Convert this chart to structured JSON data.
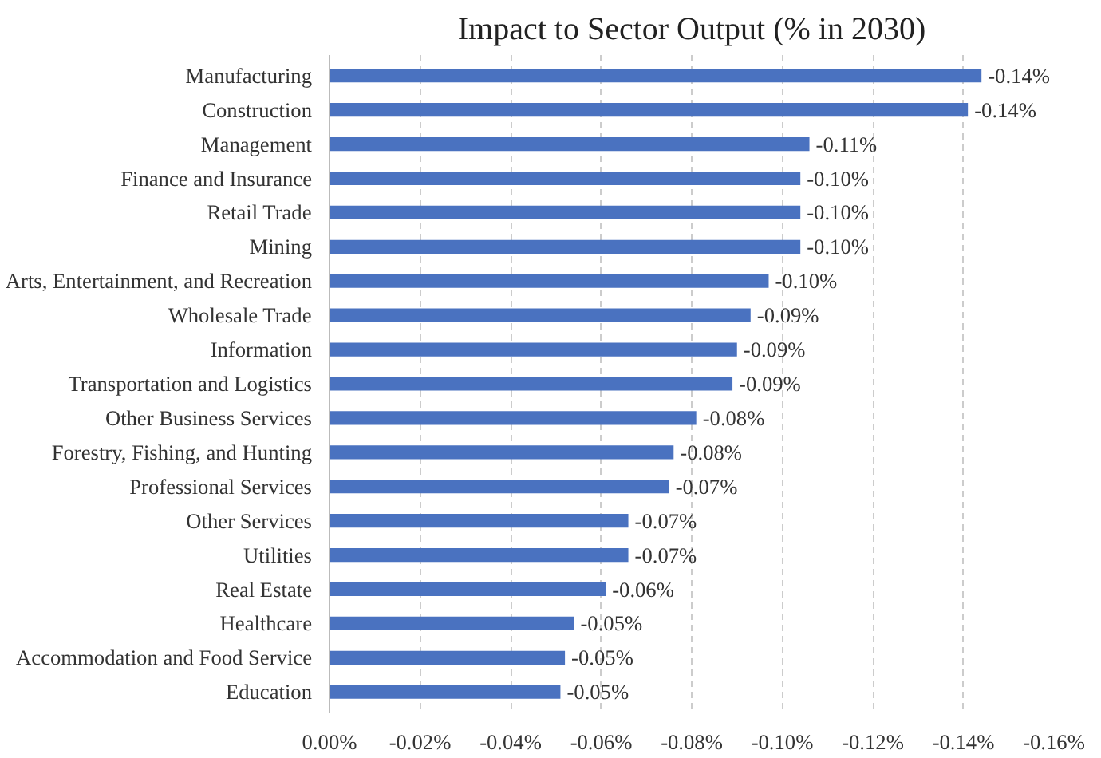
{
  "chart_data": {
    "type": "bar",
    "orientation": "horizontal",
    "title": "Impact to Sector Output (% in 2030)",
    "categories": [
      "Manufacturing",
      "Construction",
      "Management",
      "Finance and Insurance",
      "Retail Trade",
      "Mining",
      "Arts, Entertainment, and Recreation",
      "Wholesale Trade",
      "Information",
      "Transportation and Logistics",
      "Other Business Services",
      "Forestry, Fishing, and Hunting",
      "Professional Services",
      "Other Services",
      "Utilities",
      "Real Estate",
      "Healthcare",
      "Accommodation and Food Service",
      "Education"
    ],
    "values": [
      -0.144,
      -0.141,
      -0.106,
      -0.104,
      -0.104,
      -0.104,
      -0.097,
      -0.093,
      -0.09,
      -0.089,
      -0.081,
      -0.076,
      -0.075,
      -0.066,
      -0.066,
      -0.061,
      -0.054,
      -0.052,
      -0.051
    ],
    "value_labels": [
      "-0.14%",
      "-0.14%",
      "-0.11%",
      "-0.10%",
      "-0.10%",
      "-0.10%",
      "-0.10%",
      "-0.09%",
      "-0.09%",
      "-0.09%",
      "-0.08%",
      "-0.08%",
      "-0.07%",
      "-0.07%",
      "-0.07%",
      "-0.06%",
      "-0.05%",
      "-0.05%",
      "-0.05%"
    ],
    "color": "#4a72c0",
    "xlim": [
      0,
      -0.16
    ],
    "xticks": [
      {
        "value": 0,
        "label": "0.00%"
      },
      {
        "value": -0.02,
        "label": "-0.02%"
      },
      {
        "value": -0.04,
        "label": "-0.04%"
      },
      {
        "value": -0.06,
        "label": "-0.06%"
      },
      {
        "value": -0.08,
        "label": "-0.08%"
      },
      {
        "value": -0.1,
        "label": "-0.10%"
      },
      {
        "value": -0.12,
        "label": "-0.12%"
      },
      {
        "value": -0.14,
        "label": "-0.14%"
      },
      {
        "value": -0.16,
        "label": "-0.16%"
      }
    ],
    "grid": "x"
  }
}
